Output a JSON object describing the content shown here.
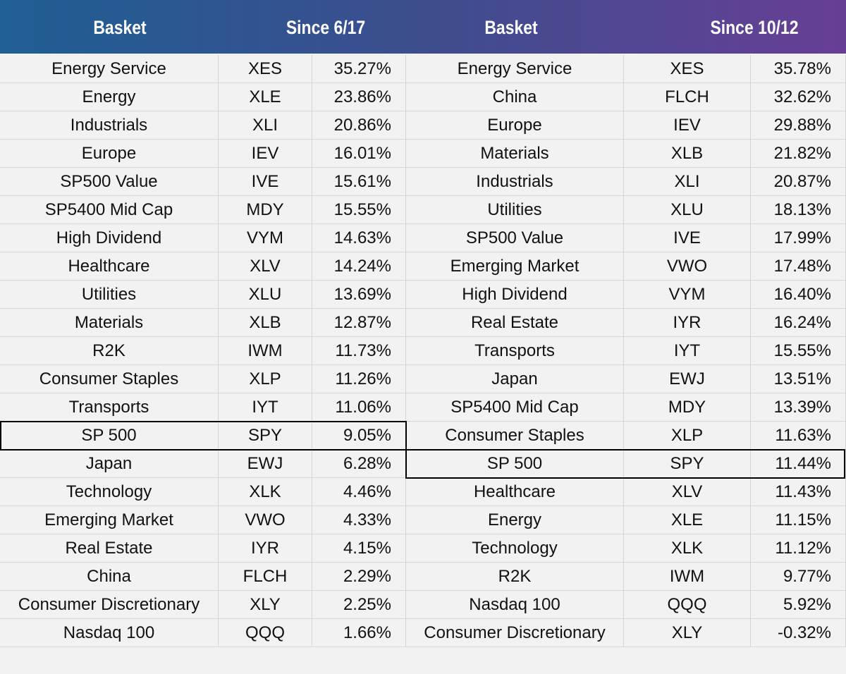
{
  "header": [
    "Basket",
    "Since 6/17",
    "Basket",
    "Since 10/12"
  ],
  "rows": [
    [
      "Energy Service",
      "XES",
      "35.27%",
      "Energy Service",
      "XES",
      "35.78%"
    ],
    [
      "Energy",
      "XLE",
      "23.86%",
      "China",
      "FLCH",
      "32.62%"
    ],
    [
      "Industrials",
      "XLI",
      "20.86%",
      "Europe",
      "IEV",
      "29.88%"
    ],
    [
      "Europe",
      "IEV",
      "16.01%",
      "Materials",
      "XLB",
      "21.82%"
    ],
    [
      "SP500 Value",
      "IVE",
      "15.61%",
      "Industrials",
      "XLI",
      "20.87%"
    ],
    [
      "SP5400 Mid Cap",
      "MDY",
      "15.55%",
      "Utilities",
      "XLU",
      "18.13%"
    ],
    [
      "High Dividend",
      "VYM",
      "14.63%",
      "SP500 Value",
      "IVE",
      "17.99%"
    ],
    [
      "Healthcare",
      "XLV",
      "14.24%",
      "Emerging Market",
      "VWO",
      "17.48%"
    ],
    [
      "Utilities",
      "XLU",
      "13.69%",
      "High Dividend",
      "VYM",
      "16.40%"
    ],
    [
      "Materials",
      "XLB",
      "12.87%",
      "Real Estate",
      "IYR",
      "16.24%"
    ],
    [
      "R2K",
      "IWM",
      "11.73%",
      "Transports",
      "IYT",
      "15.55%"
    ],
    [
      "Consumer Staples",
      "XLP",
      "11.26%",
      "Japan",
      "EWJ",
      "13.51%"
    ],
    [
      "Transports",
      "IYT",
      "11.06%",
      "SP5400 Mid Cap",
      "MDY",
      "13.39%"
    ],
    [
      "SP 500",
      "SPY",
      "9.05%",
      "Consumer Staples",
      "XLP",
      "11.63%"
    ],
    [
      "Japan",
      "EWJ",
      "6.28%",
      "SP 500",
      "SPY",
      "11.44%"
    ],
    [
      "Technology",
      "XLK",
      "4.46%",
      "Healthcare",
      "XLV",
      "11.43%"
    ],
    [
      "Emerging Market",
      "VWO",
      "4.33%",
      "Energy",
      "XLE",
      "11.15%"
    ],
    [
      "Real Estate",
      "IYR",
      "4.15%",
      "Technology",
      "XLK",
      "11.12%"
    ],
    [
      "China",
      "FLCH",
      "2.29%",
      "R2K",
      "IWM",
      "9.77%"
    ],
    [
      "Consumer Discretionary",
      "XLY",
      "2.25%",
      "Nasdaq 100",
      "QQQ",
      "5.92%"
    ],
    [
      "Nasdaq 100",
      "QQQ",
      "1.66%",
      "Consumer Discretionary",
      "XLY",
      "-0.32%"
    ]
  ]
}
